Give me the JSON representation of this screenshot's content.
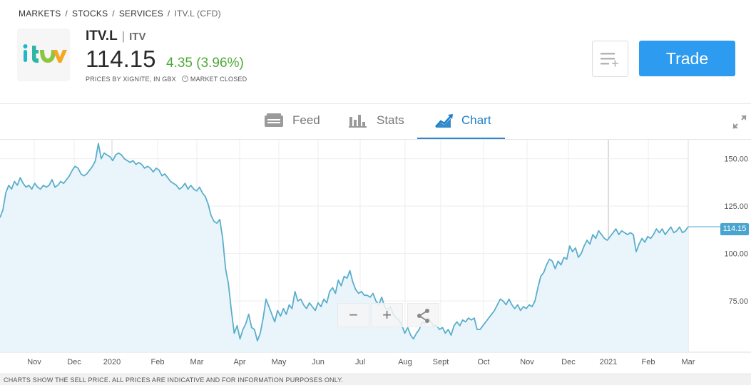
{
  "breadcrumb": {
    "items": [
      "MARKETS",
      "STOCKS",
      "SERVICES"
    ],
    "separator": "/",
    "current": "ITV.L (CFD)"
  },
  "instrument": {
    "logo_icon": "itv-logo-icon",
    "ticker": "ITV.L",
    "divider": "|",
    "name": "ITV",
    "price": "114.15",
    "change": "4.35 (3.96%)",
    "change_color": "#4fa93a",
    "source": "PRICES BY XIGNITE, IN GBX",
    "market_status": "MARKET CLOSED",
    "status_icon": "clock-icon"
  },
  "actions": {
    "watchlist_icon": "add-to-watchlist-icon",
    "trade_label": "Trade",
    "trade_color": "#2d9bf0"
  },
  "tabs": [
    {
      "label": "Feed",
      "icon": "feed-icon",
      "active": false
    },
    {
      "label": "Stats",
      "icon": "stats-icon",
      "active": false
    },
    {
      "label": "Chart",
      "icon": "chart-icon",
      "active": true
    }
  ],
  "expand_icon": "expand-icon",
  "chart_data": {
    "type": "area",
    "x_ticks": [
      "Nov",
      "Dec",
      "2020",
      "Feb",
      "Mar",
      "Apr",
      "May",
      "Jun",
      "Jul",
      "Aug",
      "Sept",
      "Oct",
      "Nov",
      "Dec",
      "2021",
      "Feb",
      "Mar"
    ],
    "y_ticks": [
      "150.00",
      "125.00",
      "100.00",
      "75.00"
    ],
    "ylim": [
      48,
      160
    ],
    "last_price_label": "114.15",
    "line_color": "#5aaecb",
    "fill_color": "#eaf5fb",
    "series": [
      {
        "values": [
          119,
          123,
          132,
          136,
          134,
          138,
          136,
          140,
          137,
          135,
          136,
          134,
          137,
          135,
          134,
          136,
          135,
          136,
          139,
          135,
          136,
          138,
          137,
          139,
          141,
          144,
          146,
          145,
          142,
          141,
          142,
          144,
          146,
          149,
          158,
          150,
          153,
          152,
          151,
          149,
          152,
          153,
          152,
          150,
          149,
          148,
          149,
          147,
          148,
          147,
          145,
          146,
          145,
          143,
          145,
          144,
          141,
          142,
          140,
          138,
          137,
          136,
          134,
          135,
          137,
          134,
          136,
          134,
          133,
          135,
          132,
          130,
          126,
          120,
          117,
          116,
          118,
          108,
          92,
          84,
          70,
          58,
          62,
          55,
          60,
          63,
          68,
          61,
          60,
          54,
          58,
          66,
          76,
          72,
          68,
          64,
          70,
          67,
          71,
          68,
          73,
          71,
          80,
          75,
          76,
          73,
          71,
          74,
          72,
          70,
          74,
          72,
          76,
          74,
          80,
          82,
          79,
          86,
          83,
          88,
          87,
          91,
          85,
          81,
          79,
          80,
          78,
          78,
          77,
          79,
          75,
          73,
          77,
          72,
          70,
          72,
          68,
          66,
          65,
          62,
          58,
          61,
          57,
          55,
          58,
          60,
          64,
          63,
          66,
          64,
          62,
          62,
          60,
          61,
          58,
          60,
          57,
          62,
          64,
          62,
          65,
          64,
          66,
          65,
          66,
          60,
          60,
          62,
          64,
          66,
          68,
          70,
          73,
          76,
          75,
          73,
          76,
          73,
          71,
          73,
          70,
          72,
          71,
          73,
          72,
          75,
          82,
          88,
          90,
          94,
          97,
          96,
          92,
          96,
          94,
          98,
          97,
          104,
          101,
          103,
          98,
          100,
          104,
          107,
          105,
          110,
          108,
          112,
          110,
          108,
          107,
          109,
          111,
          113,
          110,
          112,
          111,
          110,
          111,
          110,
          101,
          105,
          108,
          106,
          109,
          108,
          110,
          113,
          111,
          113,
          110,
          112,
          114,
          111,
          112,
          114,
          111,
          112,
          114.15
        ]
      }
    ]
  },
  "zoom": {
    "minus_label": "−",
    "plus_label": "+",
    "share_icon": "share-icon"
  },
  "footer_text": "CHARTS SHOW THE SELL PRICE. ALL PRICES ARE INDICATIVE AND FOR INFORMATION PURPOSES ONLY."
}
